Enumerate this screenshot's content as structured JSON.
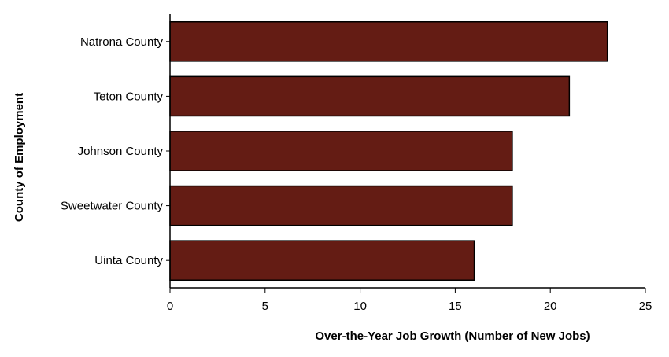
{
  "chart_data": {
    "type": "bar",
    "orientation": "horizontal",
    "title": "",
    "xlabel": "Over-the-Year Job Growth (Number of New Jobs)",
    "ylabel": "County of Employment",
    "categories": [
      "Natrona County",
      "Teton County",
      "Johnson County",
      "Sweetwater County",
      "Uinta County"
    ],
    "values": [
      23,
      21,
      18,
      18,
      16
    ],
    "xlim": [
      0,
      25
    ],
    "xticks": [
      0,
      5,
      10,
      15,
      20,
      25
    ],
    "grid": false,
    "legend": "none",
    "bar_color": "#641c14",
    "bar_edge_color": "#000000"
  }
}
